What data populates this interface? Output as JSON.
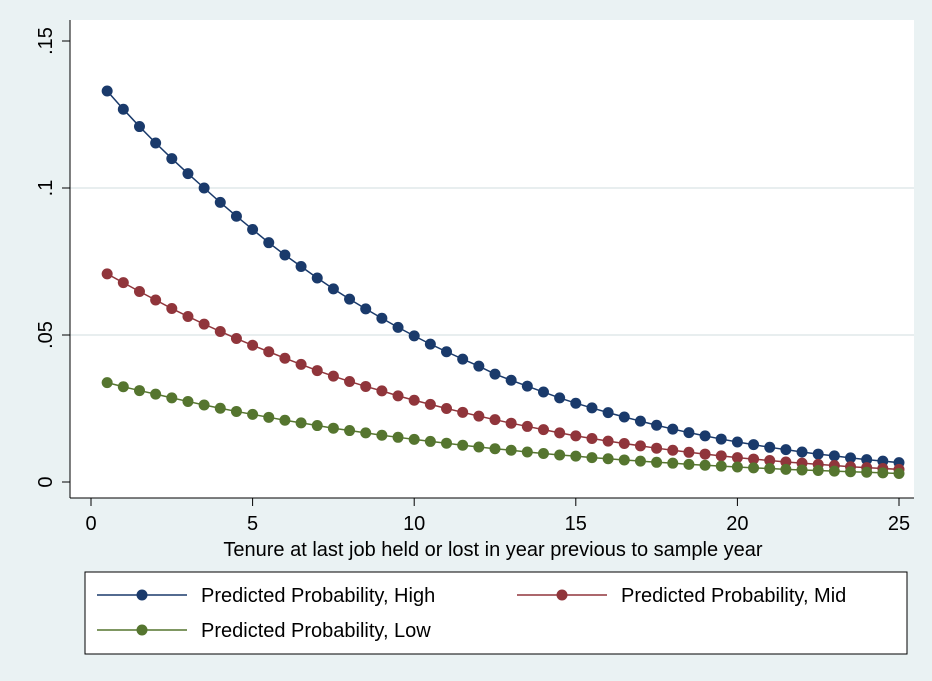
{
  "chart_data": {
    "type": "line",
    "title": "",
    "xlabel": "Tenure at last job held or lost in year previous to sample year",
    "ylabel": "",
    "xlim": [
      0,
      25
    ],
    "ylim": [
      0,
      0.15
    ],
    "x_ticks": [
      0,
      5,
      10,
      15,
      20,
      25
    ],
    "x_tick_labels": [
      "0",
      "5",
      "10",
      "15",
      "20",
      "25"
    ],
    "y_ticks": [
      0,
      0.05,
      0.1,
      0.15
    ],
    "y_tick_labels": [
      "0",
      ".05",
      ".1",
      ".15"
    ],
    "grid": true,
    "legend_position": "bottom",
    "x": [
      0.5,
      1,
      1.5,
      2,
      2.5,
      3,
      3.5,
      4,
      4.5,
      5,
      5.5,
      6,
      6.5,
      7,
      7.5,
      8,
      8.5,
      9,
      9.5,
      10,
      10.5,
      11,
      11.5,
      12,
      12.5,
      13,
      13.5,
      14,
      14.5,
      15,
      15.5,
      16,
      16.5,
      17,
      17.5,
      18,
      18.5,
      19,
      19.5,
      20,
      20.5,
      21,
      21.5,
      22,
      22.5,
      23,
      23.5,
      24,
      24.5,
      25
    ],
    "series": [
      {
        "name": "Predicted Probability, High",
        "color": "#1a3a6b",
        "values": [
          0.133,
          0.1268,
          0.1209,
          0.1153,
          0.11,
          0.1049,
          0.1,
          0.0951,
          0.0904,
          0.0859,
          0.0814,
          0.0772,
          0.0733,
          0.0694,
          0.0657,
          0.0622,
          0.0589,
          0.0557,
          0.0526,
          0.0497,
          0.0469,
          0.0443,
          0.0418,
          0.0394,
          0.0367,
          0.0346,
          0.0326,
          0.0306,
          0.0286,
          0.0268,
          0.0252,
          0.0236,
          0.0221,
          0.0207,
          0.0193,
          0.018,
          0.0168,
          0.0157,
          0.0146,
          0.0136,
          0.0127,
          0.0118,
          0.011,
          0.0102,
          0.0095,
          0.0089,
          0.0082,
          0.0076,
          0.0071,
          0.0066
        ]
      },
      {
        "name": "Predicted Probability, Mid",
        "color": "#90353b",
        "values": [
          0.0708,
          0.0678,
          0.0648,
          0.0619,
          0.059,
          0.0563,
          0.0537,
          0.0512,
          0.0488,
          0.0465,
          0.0443,
          0.0421,
          0.04,
          0.0379,
          0.036,
          0.0342,
          0.0325,
          0.031,
          0.0293,
          0.0278,
          0.0264,
          0.025,
          0.0237,
          0.0224,
          0.0212,
          0.02,
          0.0189,
          0.0178,
          0.0167,
          0.0157,
          0.0148,
          0.0139,
          0.0131,
          0.0123,
          0.0115,
          0.0108,
          0.0101,
          0.0095,
          0.0089,
          0.0083,
          0.0078,
          0.0073,
          0.0068,
          0.0064,
          0.006,
          0.0056,
          0.0052,
          0.0049,
          0.0046,
          0.0043
        ]
      },
      {
        "name": "Predicted Probability, Low",
        "color": "#55752f",
        "values": [
          0.0338,
          0.0324,
          0.0311,
          0.0299,
          0.0286,
          0.0274,
          0.0262,
          0.0251,
          0.024,
          0.023,
          0.022,
          0.021,
          0.0201,
          0.0192,
          0.0183,
          0.0175,
          0.0167,
          0.0159,
          0.0152,
          0.0145,
          0.0138,
          0.0132,
          0.0125,
          0.0119,
          0.0113,
          0.0108,
          0.0102,
          0.0097,
          0.0092,
          0.0088,
          0.0083,
          0.0079,
          0.0075,
          0.0071,
          0.0067,
          0.0064,
          0.006,
          0.0057,
          0.0054,
          0.0051,
          0.0048,
          0.0046,
          0.0043,
          0.0041,
          0.0039,
          0.0037,
          0.0035,
          0.0033,
          0.0031,
          0.0029
        ]
      }
    ]
  }
}
